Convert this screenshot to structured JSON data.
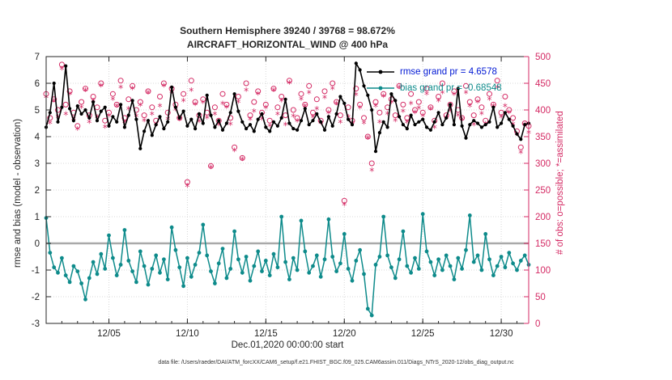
{
  "footer": {
    "text": "data file: /Users/raeder/DAI/ATM_forcXX/CAM6_setup/f.e21.FHIST_BGC.f09_025.CAM6assim.011/Diags_NTrS_2020-12/obs_diag_output.nc"
  },
  "chart_data": {
    "type": "line",
    "title": "Southern Hemisphere 39240 / 39768 = 98.672%",
    "subtitle": "AIRCRAFT_HORIZONTAL_WIND @ 400 hPa",
    "xlabel": "Dec.01,2020 00:00:00 start",
    "ylabel_left": "rmse and bias (model - observation)",
    "ylabel_right": "# of obs: o=possible; *=assimilated",
    "x_total_days": 30.75,
    "x_ticks": [
      {
        "day": 4,
        "label": "12/05"
      },
      {
        "day": 9,
        "label": "12/10"
      },
      {
        "day": 14,
        "label": "12/15"
      },
      {
        "day": 19,
        "label": "12/20"
      },
      {
        "day": 24,
        "label": "12/25"
      },
      {
        "day": 29,
        "label": "12/30"
      }
    ],
    "left_axis": {
      "min": -3,
      "max": 7,
      "ticks": [
        -3,
        -2,
        -1,
        0,
        1,
        2,
        3,
        4,
        5,
        6,
        7
      ]
    },
    "right_axis": {
      "min": 0,
      "max": 500,
      "ticks": [
        0,
        50,
        100,
        150,
        200,
        250,
        300,
        350,
        400,
        450,
        500
      ]
    },
    "colors": {
      "rmse_line": "#000000",
      "bias_line": "#0e8b8b",
      "obs": "#d42a64",
      "grid": "#d8d8d8",
      "zero_line": "#a9a9a9",
      "axis": "#262626"
    },
    "legend": [
      {
        "label": "rmse grand pr = 4.6578",
        "text_color": "#0018d4",
        "line_color": "#000000"
      },
      {
        "label": "bias grand pr = -0.68548",
        "text_color": "#0e8b8b",
        "line_color": "#0e8b8b"
      }
    ],
    "series": [
      {
        "name": "rmse",
        "axis": "left",
        "style": "line-dot",
        "values": [
          4.35,
          4.9,
          6.0,
          4.55,
          5.1,
          6.65,
          5.05,
          4.6,
          5.15,
          4.85,
          5.0,
          4.7,
          5.3,
          4.6,
          4.95,
          5.1,
          4.4,
          4.75,
          4.55,
          5.2,
          4.35,
          4.8,
          5.35,
          4.65,
          3.55,
          4.2,
          4.6,
          4.05,
          4.45,
          4.75,
          4.3,
          4.55,
          5.85,
          5.1,
          4.7,
          4.95,
          4.4,
          4.65,
          4.3,
          4.85,
          4.5,
          5.55,
          4.8,
          4.35,
          4.6,
          4.25,
          4.5,
          4.9,
          5.6,
          4.95,
          4.55,
          4.3,
          4.45,
          4.2,
          4.65,
          4.85,
          4.35,
          4.2,
          4.55,
          4.4,
          4.7,
          5.4,
          4.5,
          4.3,
          4.25,
          4.6,
          5.05,
          4.45,
          4.6,
          4.85,
          4.55,
          4.25,
          4.75,
          4.4,
          4.85,
          5.5,
          5.25,
          4.65,
          4.45,
          6.75,
          6.5,
          5.9,
          5.55,
          5.0,
          3.45,
          4.15,
          4.55,
          4.35,
          5.6,
          5.35,
          4.75,
          4.45,
          4.3,
          4.8,
          4.45,
          4.55,
          4.65,
          4.35,
          4.25,
          4.55,
          4.9,
          4.45,
          4.7,
          5.2,
          4.45,
          5.8,
          4.4,
          3.95,
          4.45,
          4.6,
          4.5,
          4.35,
          4.45,
          4.55,
          5.1,
          4.35,
          4.5,
          4.9,
          4.65,
          4.4,
          4.1,
          3.9,
          4.45,
          4.5
        ]
      },
      {
        "name": "bias",
        "axis": "left",
        "style": "line-dot",
        "values": [
          0.95,
          -0.35,
          -0.9,
          -1.1,
          -0.55,
          -1.2,
          -1.45,
          -0.85,
          -1.05,
          -1.5,
          -2.1,
          -1.3,
          -0.7,
          -1.15,
          -0.4,
          -0.95,
          0.3,
          -0.55,
          -1.2,
          -0.8,
          0.5,
          -0.65,
          -1.05,
          -1.45,
          -0.3,
          -0.85,
          -1.55,
          -0.95,
          -0.45,
          -1.1,
          -0.6,
          -1.35,
          0.6,
          -0.25,
          -0.9,
          -1.6,
          -0.55,
          -1.25,
          -0.8,
          -0.35,
          0.7,
          -0.45,
          -1.05,
          -1.5,
          -0.75,
          -0.2,
          -1.3,
          -0.95,
          0.45,
          -0.6,
          -1.1,
          -0.5,
          -1.4,
          -0.85,
          -0.3,
          -1.05,
          -0.65,
          -1.2,
          -0.4,
          -0.9,
          1.0,
          -0.7,
          -1.35,
          -0.55,
          -1.0,
          0.85,
          -0.3,
          -1.1,
          -0.85,
          -0.45,
          -1.25,
          -0.6,
          0.9,
          -0.5,
          -1.05,
          -0.75,
          0.35,
          -0.95,
          -1.4,
          -0.65,
          -0.25,
          -1.15,
          -2.45,
          -2.7,
          -0.8,
          -0.5,
          1.0,
          -0.45,
          -0.9,
          -1.3,
          -0.6,
          0.45,
          -0.85,
          -1.1,
          -0.55,
          -0.95,
          1.1,
          -0.3,
          -0.7,
          -1.2,
          -0.6,
          -1.0,
          -0.45,
          -0.85,
          -1.35,
          -0.55,
          -0.95,
          -0.25,
          1.05,
          -0.7,
          -0.45,
          -1.0,
          0.35,
          -0.6,
          -1.2,
          -0.85,
          -0.5,
          -0.9,
          -0.35,
          -0.75,
          -1.0,
          -0.65,
          -0.45,
          -0.8
        ]
      },
      {
        "name": "possible",
        "axis": "right",
        "style": "circle",
        "values": [
          430,
          385,
          420,
          400,
          485,
          410,
          435,
          395,
          370,
          415,
          440,
          390,
          425,
          405,
          450,
          380,
          395,
          430,
          410,
          455,
          385,
          420,
          445,
          400,
          415,
          390,
          435,
          405,
          380,
          425,
          450,
          395,
          440,
          410,
          385,
          430,
          265,
          455,
          415,
          390,
          420,
          395,
          295,
          405,
          380,
          430,
          410,
          385,
          330,
          425,
          310,
          450,
          390,
          415,
          435,
          395,
          410,
          380,
          440,
          405,
          425,
          390,
          455,
          400,
          385,
          430,
          410,
          445,
          395,
          420,
          380,
          435,
          400,
          450,
          415,
          390,
          230,
          405,
          380,
          440,
          410,
          385,
          350,
          300,
          415,
          395,
          430,
          405,
          420,
          390,
          445,
          410,
          385,
          430,
          400,
          415,
          395,
          440,
          405,
          380,
          425,
          450,
          390,
          410,
          435,
          400,
          385,
          445,
          415,
          390,
          420,
          405,
          380,
          430,
          410,
          455,
          395,
          425,
          400,
          385,
          360,
          330,
          375,
          370
        ]
      },
      {
        "name": "assimilated",
        "axis": "right",
        "style": "asterisk",
        "values": [
          422,
          373,
          415,
          385,
          475,
          390,
          428,
          381,
          362,
          403,
          435,
          375,
          415,
          385,
          443,
          366,
          387,
          418,
          405,
          440,
          375,
          400,
          438,
          386,
          407,
          378,
          430,
          390,
          370,
          405,
          443,
          381,
          432,
          398,
          380,
          415,
          255,
          435,
          408,
          376,
          412,
          383,
          290,
          390,
          370,
          410,
          403,
          371,
          322,
          413,
          305,
          435,
          380,
          395,
          428,
          381,
          402,
          368,
          435,
          390,
          415,
          370,
          448,
          386,
          377,
          418,
          405,
          430,
          385,
          400,
          373,
          421,
          392,
          438,
          410,
          375,
          220,
          385,
          373,
          426,
          402,
          373,
          345,
          285,
          405,
          375,
          423,
          391,
          412,
          378,
          440,
          395,
          375,
          410,
          393,
          401,
          387,
          428,
          400,
          365,
          415,
          430,
          383,
          396,
          427,
          388,
          380,
          430,
          405,
          370,
          413,
          391,
          372,
          418,
          405,
          440,
          385,
          405,
          393,
          371,
          352,
          318,
          370,
          355
        ]
      }
    ]
  }
}
